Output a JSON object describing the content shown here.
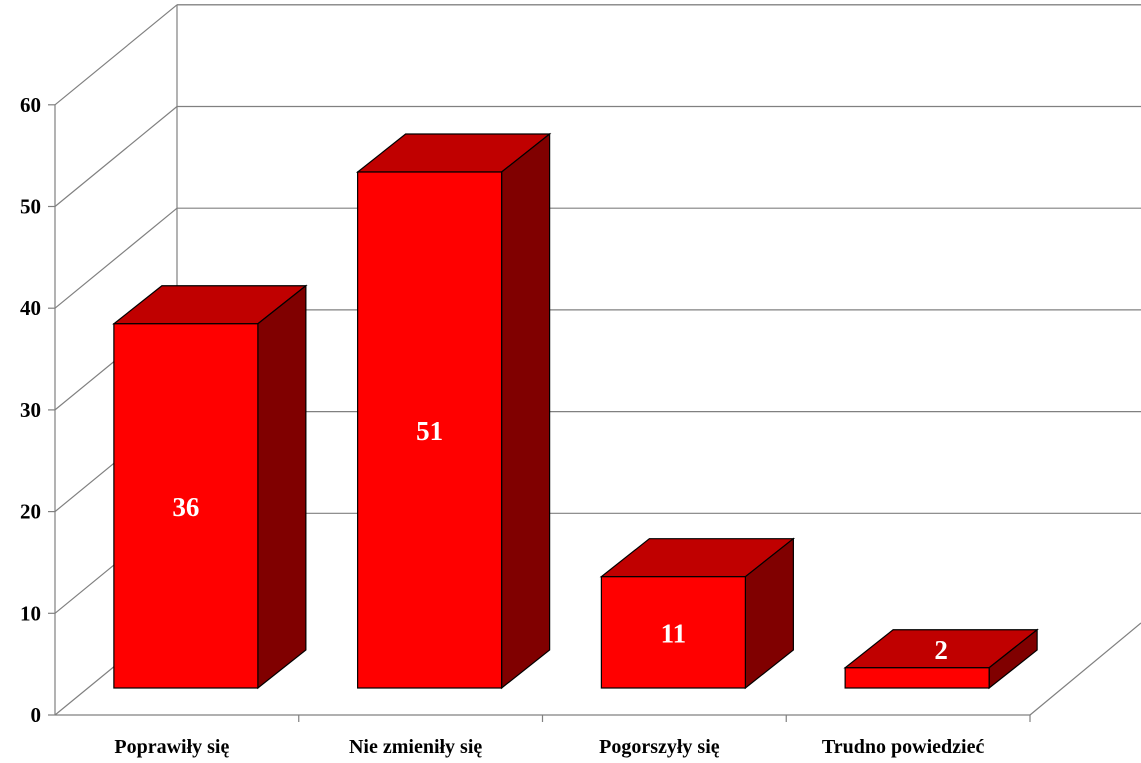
{
  "chart_data": {
    "type": "bar",
    "style": "3d",
    "title": "",
    "xlabel": "",
    "ylabel": "",
    "categories": [
      "Poprawiły się",
      "Nie zmieniły się",
      "Pogorszyły się",
      "Trudno powiedzieć"
    ],
    "values": [
      36,
      51,
      11,
      2
    ],
    "data_labels": [
      "36",
      "51",
      "11",
      "2"
    ],
    "ylim": [
      0,
      60
    ],
    "yticks": [
      "0",
      "10",
      "20",
      "30",
      "40",
      "50",
      "60"
    ],
    "grid": true,
    "legend": "none",
    "colors": {
      "bar_front": "#ff0000",
      "bar_top": "#c00000",
      "bar_side": "#800000",
      "edge": "#000000",
      "grid": "#808080",
      "data_label": "#ffffff"
    }
  }
}
